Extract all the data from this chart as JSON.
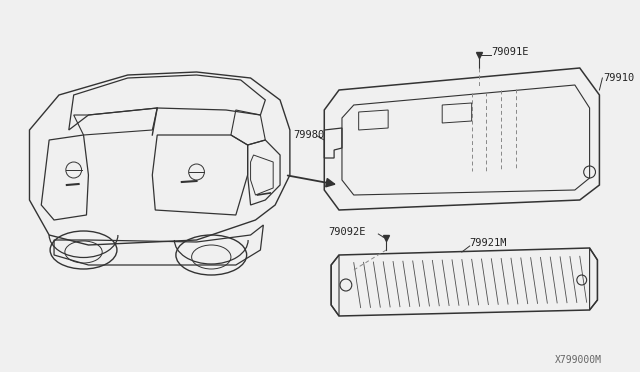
{
  "bg_color": "#f0f0f0",
  "diagram_id": "X799000M",
  "line_color": "#333333",
  "text_color": "#222222",
  "dashed_color": "#888888",
  "parts": [
    {
      "id": "79910",
      "label": "79910"
    },
    {
      "id": "79091E",
      "label": "79091E"
    },
    {
      "id": "79980",
      "label": "79980"
    },
    {
      "id": "79921M",
      "label": "79921M"
    },
    {
      "id": "79092E",
      "label": "79092E"
    }
  ]
}
